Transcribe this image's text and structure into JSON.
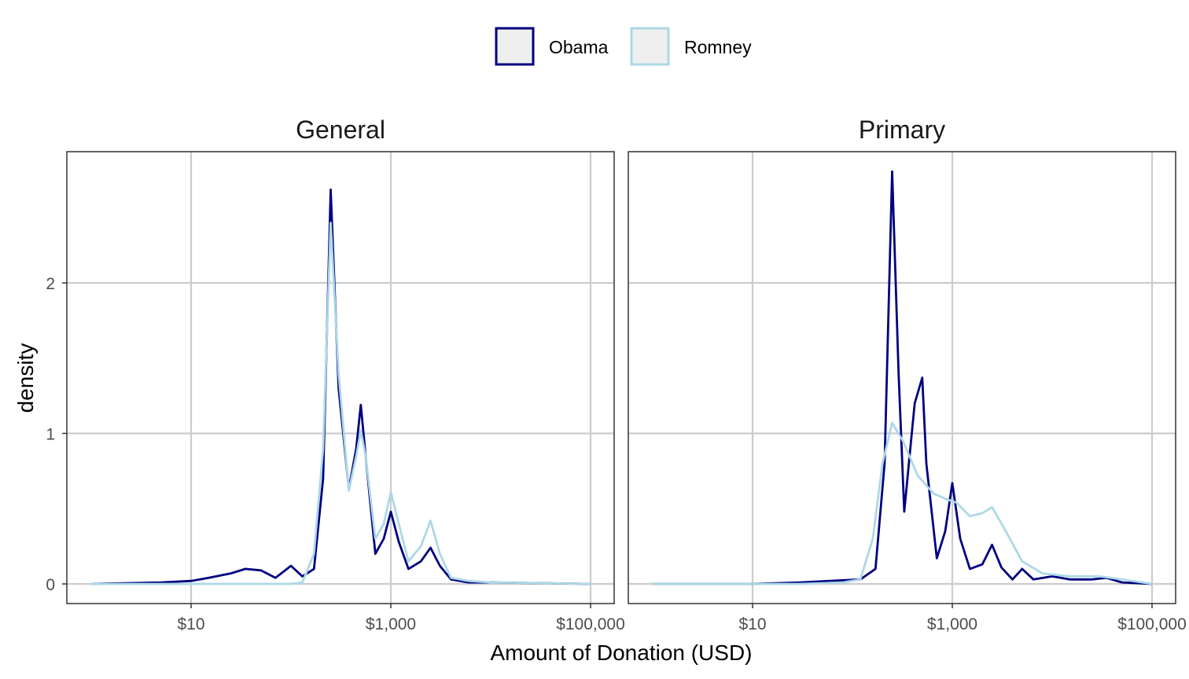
{
  "chart_data": {
    "type": "line",
    "title": "",
    "xlabel": "Amount of Donation (USD)",
    "ylabel": "density",
    "x_scale": "log10",
    "xlim": [
      1,
      100000
    ],
    "ylim": [
      0,
      2.85
    ],
    "x_ticks": [
      {
        "value": 10,
        "label": "$10"
      },
      {
        "value": 1000,
        "label": "$1,000"
      },
      {
        "value": 100000,
        "label": "$100,000"
      }
    ],
    "y_ticks": [
      {
        "value": 0,
        "label": "0"
      },
      {
        "value": 1,
        "label": "1"
      },
      {
        "value": 2,
        "label": "2"
      }
    ],
    "grid": true,
    "legend": {
      "position": "top",
      "entries": [
        {
          "name": "Obama",
          "color": "#000080"
        },
        {
          "name": "Romney",
          "color": "#add8e6"
        }
      ]
    },
    "panels": [
      {
        "title": "General",
        "series": [
          {
            "name": "Obama",
            "color": "#000080",
            "points": [
              [
                1,
                0
              ],
              [
                5,
                0.01
              ],
              [
                10,
                0.02
              ],
              [
                15,
                0.04
              ],
              [
                25,
                0.07
              ],
              [
                35,
                0.1
              ],
              [
                50,
                0.09
              ],
              [
                70,
                0.04
              ],
              [
                100,
                0.12
              ],
              [
                130,
                0.05
              ],
              [
                170,
                0.1
              ],
              [
                210,
                0.7
              ],
              [
                250,
                2.62
              ],
              [
                300,
                1.3
              ],
              [
                380,
                0.63
              ],
              [
                450,
                0.9
              ],
              [
                500,
                1.19
              ],
              [
                560,
                0.85
              ],
              [
                700,
                0.2
              ],
              [
                850,
                0.3
              ],
              [
                1000,
                0.48
              ],
              [
                1200,
                0.28
              ],
              [
                1500,
                0.1
              ],
              [
                2000,
                0.15
              ],
              [
                2500,
                0.24
              ],
              [
                3100,
                0.12
              ],
              [
                4000,
                0.03
              ],
              [
                6000,
                0.01
              ],
              [
                10000,
                0.01
              ],
              [
                100000,
                0
              ]
            ]
          },
          {
            "name": "Romney",
            "color": "#add8e6",
            "points": [
              [
                1,
                0
              ],
              [
                100,
                0
              ],
              [
                130,
                0.01
              ],
              [
                170,
                0.2
              ],
              [
                210,
                0.9
              ],
              [
                250,
                2.4
              ],
              [
                300,
                1.4
              ],
              [
                380,
                0.62
              ],
              [
                450,
                0.85
              ],
              [
                500,
                1.02
              ],
              [
                560,
                0.85
              ],
              [
                700,
                0.3
              ],
              [
                850,
                0.4
              ],
              [
                1000,
                0.61
              ],
              [
                1200,
                0.4
              ],
              [
                1500,
                0.15
              ],
              [
                2000,
                0.25
              ],
              [
                2500,
                0.42
              ],
              [
                3100,
                0.2
              ],
              [
                4000,
                0.04
              ],
              [
                6000,
                0.02
              ],
              [
                10000,
                0.01
              ],
              [
                100000,
                0
              ]
            ]
          }
        ]
      },
      {
        "title": "Primary",
        "series": [
          {
            "name": "Obama",
            "color": "#000080",
            "points": [
              [
                1,
                0
              ],
              [
                10,
                0
              ],
              [
                30,
                0.01
              ],
              [
                60,
                0.02
              ],
              [
                120,
                0.03
              ],
              [
                170,
                0.1
              ],
              [
                210,
                0.8
              ],
              [
                250,
                2.74
              ],
              [
                290,
                1.4
              ],
              [
                330,
                0.48
              ],
              [
                380,
                0.9
              ],
              [
                420,
                1.2
              ],
              [
                500,
                1.37
              ],
              [
                550,
                0.8
              ],
              [
                700,
                0.17
              ],
              [
                850,
                0.35
              ],
              [
                1000,
                0.67
              ],
              [
                1200,
                0.3
              ],
              [
                1500,
                0.1
              ],
              [
                2000,
                0.13
              ],
              [
                2500,
                0.26
              ],
              [
                3100,
                0.11
              ],
              [
                4000,
                0.03
              ],
              [
                5000,
                0.1
              ],
              [
                6500,
                0.03
              ],
              [
                10000,
                0.05
              ],
              [
                15000,
                0.03
              ],
              [
                25000,
                0.03
              ],
              [
                35000,
                0.04
              ],
              [
                50000,
                0.01
              ],
              [
                100000,
                0
              ]
            ]
          },
          {
            "name": "Romney",
            "color": "#add8e6",
            "points": [
              [
                1,
                0
              ],
              [
                30,
                0
              ],
              [
                80,
                0.01
              ],
              [
                120,
                0.03
              ],
              [
                160,
                0.3
              ],
              [
                200,
                0.8
              ],
              [
                250,
                1.07
              ],
              [
                320,
                0.95
              ],
              [
                450,
                0.72
              ],
              [
                650,
                0.6
              ],
              [
                900,
                0.56
              ],
              [
                1100,
                0.54
              ],
              [
                1500,
                0.45
              ],
              [
                2000,
                0.47
              ],
              [
                2500,
                0.51
              ],
              [
                3500,
                0.34
              ],
              [
                5000,
                0.15
              ],
              [
                8000,
                0.07
              ],
              [
                15000,
                0.05
              ],
              [
                30000,
                0.05
              ],
              [
                50000,
                0.03
              ],
              [
                100000,
                0
              ]
            ]
          }
        ]
      }
    ]
  }
}
